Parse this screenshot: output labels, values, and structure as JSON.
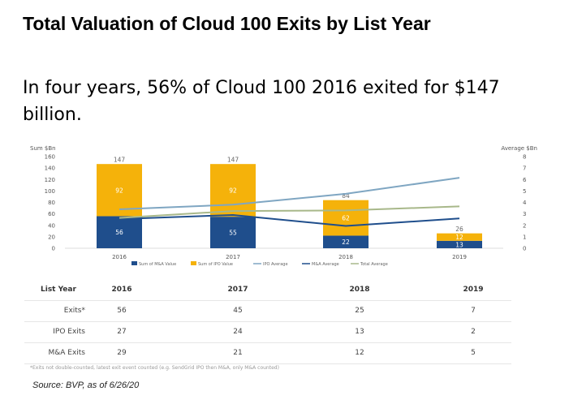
{
  "header": {
    "title": "Total Valuation of Cloud 100 Exits by List Year",
    "subtitle": "In four years, 56% of Cloud 100 2016 exited for $147 billion."
  },
  "chart_data": {
    "type": "bar",
    "categories": [
      "2016",
      "2017",
      "2018",
      "2019"
    ],
    "left_axis_label": "Sum $Bn",
    "right_axis_label": "Average $Bn",
    "ylim": [
      0,
      160
    ],
    "y_ticks": [
      "0",
      "20",
      "40",
      "60",
      "80",
      "100",
      "120",
      "140",
      "160"
    ],
    "y2lim": [
      0,
      8
    ],
    "y2_ticks": [
      "0",
      "1",
      "2",
      "3",
      "4",
      "5",
      "6",
      "7",
      "8"
    ],
    "bar_series": [
      {
        "name": "Sum of M&A Value",
        "color": "#1f4e8c",
        "values": [
          56,
          55,
          22,
          13
        ],
        "labels": [
          "56",
          "55",
          "22",
          "13"
        ]
      },
      {
        "name": "Sum of IPO Value",
        "color": "#f5b20a",
        "values": [
          92,
          92,
          62,
          12
        ],
        "labels": [
          "92",
          "92",
          "62",
          "12"
        ]
      }
    ],
    "totals": [
      "147",
      "147",
      "84",
      "26"
    ],
    "total_values": [
      147,
      147,
      84,
      26
    ],
    "line_series": [
      {
        "name": "IPO Average",
        "color": "#7fa6c2",
        "values": [
          3.4,
          3.8,
          4.75,
          6.15
        ]
      },
      {
        "name": "M&A Average",
        "color": "#1f4e8c",
        "values": [
          2.55,
          2.9,
          1.95,
          2.6
        ]
      },
      {
        "name": "Total Average",
        "color": "#a8b88a",
        "values": [
          2.65,
          3.25,
          3.3,
          3.65
        ]
      }
    ],
    "legend_position": "bottom"
  },
  "table": {
    "header_label": "List Year",
    "years": [
      "2016",
      "2017",
      "2018",
      "2019"
    ],
    "rows": [
      {
        "label": "Exits*",
        "values": [
          "56",
          "45",
          "25",
          "7"
        ]
      },
      {
        "label": "IPO Exits",
        "values": [
          "27",
          "24",
          "13",
          "2"
        ]
      },
      {
        "label": "M&A Exits",
        "values": [
          "29",
          "21",
          "12",
          "5"
        ]
      }
    ]
  },
  "footnote": "*Exits not double-counted, latest exit event counted (e.g. SendGrid IPO then M&A, only M&A counted)",
  "source": "Source: BVP, as of 6/26/20"
}
